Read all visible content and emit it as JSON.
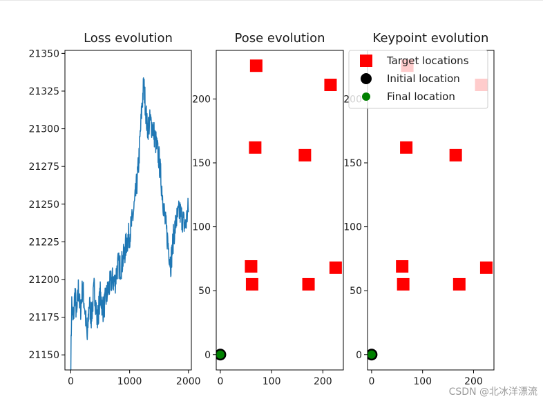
{
  "chart_data": [
    {
      "type": "line",
      "title": "Loss evolution",
      "xlabel": "",
      "ylabel": "",
      "xlim": [
        -100,
        2050
      ],
      "ylim": [
        21140,
        21352
      ],
      "xticks": [
        0,
        1000,
        2000
      ],
      "yticks": [
        21150,
        21175,
        21200,
        21225,
        21250,
        21275,
        21300,
        21325,
        21350
      ],
      "series": [
        {
          "name": "loss",
          "color": "#1f77b4",
          "anchors": [
            [
              0,
              21145
            ],
            [
              15,
              21185
            ],
            [
              40,
              21170
            ],
            [
              70,
              21192
            ],
            [
              100,
              21175
            ],
            [
              130,
              21195
            ],
            [
              160,
              21178
            ],
            [
              200,
              21195
            ],
            [
              240,
              21180
            ],
            [
              280,
              21160
            ],
            [
              310,
              21185
            ],
            [
              350,
              21175
            ],
            [
              400,
              21195
            ],
            [
              450,
              21172
            ],
            [
              500,
              21190
            ],
            [
              550,
              21180
            ],
            [
              600,
              21188
            ],
            [
              650,
              21195
            ],
            [
              700,
              21200
            ],
            [
              750,
              21198
            ],
            [
              800,
              21210
            ],
            [
              850,
              21208
            ],
            [
              900,
              21215
            ],
            [
              950,
              21225
            ],
            [
              1000,
              21230
            ],
            [
              1050,
              21240
            ],
            [
              1100,
              21255
            ],
            [
              1150,
              21275
            ],
            [
              1180,
              21295
            ],
            [
              1210,
              21315
            ],
            [
              1240,
              21330
            ],
            [
              1260,
              21320
            ],
            [
              1300,
              21300
            ],
            [
              1350,
              21305
            ],
            [
              1400,
              21300
            ],
            [
              1450,
              21290
            ],
            [
              1500,
              21280
            ],
            [
              1550,
              21260
            ],
            [
              1600,
              21240
            ],
            [
              1650,
              21225
            ],
            [
              1700,
              21210
            ],
            [
              1750,
              21230
            ],
            [
              1800,
              21240
            ],
            [
              1850,
              21245
            ],
            [
              1900,
              21240
            ],
            [
              1950,
              21235
            ],
            [
              2000,
              21248
            ]
          ],
          "noise": 9
        }
      ]
    },
    {
      "type": "scatter",
      "title": "Pose evolution",
      "xlim": [
        -8,
        240
      ],
      "ylim": [
        -12,
        238
      ],
      "xticks": [
        0,
        100,
        200
      ],
      "xtick_labels": [
        "0",
        "100",
        "200"
      ],
      "yticks": [
        0,
        50,
        100,
        150,
        200
      ],
      "ytick_labels": [
        "0",
        "50",
        "100",
        "150",
        "200"
      ],
      "series": [
        {
          "name": "Target locations",
          "color": "#ff0000",
          "marker": "square",
          "points": [
            [
              70,
              226
            ],
            [
              215,
              211
            ],
            [
              68,
              162
            ],
            [
              165,
              156
            ],
            [
              60,
              69
            ],
            [
              62,
              55
            ],
            [
              172,
              55
            ],
            [
              225,
              68
            ]
          ]
        },
        {
          "name": "Initial location",
          "color": "#000000",
          "marker": "circle",
          "points": [
            [
              0,
              0
            ]
          ]
        },
        {
          "name": "Final location",
          "color": "#008000",
          "marker": "circle",
          "points": [
            [
              0,
              0
            ]
          ]
        }
      ]
    },
    {
      "type": "scatter",
      "title": "Keypoint evolution",
      "xlim": [
        -8,
        240
      ],
      "ylim": [
        -12,
        238
      ],
      "xticks": [
        0,
        100,
        200
      ],
      "xtick_labels": [
        "0",
        "100",
        "200"
      ],
      "yticks": [
        0,
        50,
        100,
        150,
        200
      ],
      "ytick_labels": [
        "0",
        "50",
        "100",
        "150",
        "200"
      ],
      "legend": {
        "placement": "top-right",
        "entries": [
          {
            "label": "Target locations",
            "marker": "square",
            "color": "#ff0000"
          },
          {
            "label": "Initial location",
            "marker": "circle",
            "color": "#000000"
          },
          {
            "label": "Final location",
            "marker": "circle",
            "color": "#008000"
          }
        ]
      },
      "series": [
        {
          "name": "Target locations",
          "color": "#ff0000",
          "marker": "square",
          "points": [
            [
              70,
              226
            ],
            [
              215,
              211
            ],
            [
              68,
              162
            ],
            [
              165,
              156
            ],
            [
              60,
              69
            ],
            [
              62,
              55
            ],
            [
              172,
              55
            ],
            [
              225,
              68
            ]
          ]
        },
        {
          "name": "Initial location",
          "color": "#000000",
          "marker": "circle",
          "points": [
            [
              0,
              0
            ]
          ]
        },
        {
          "name": "Final location",
          "color": "#008000",
          "marker": "circle",
          "points": [
            [
              0,
              0
            ]
          ]
        }
      ]
    }
  ],
  "watermark": "CSDN @北冰洋漂流"
}
